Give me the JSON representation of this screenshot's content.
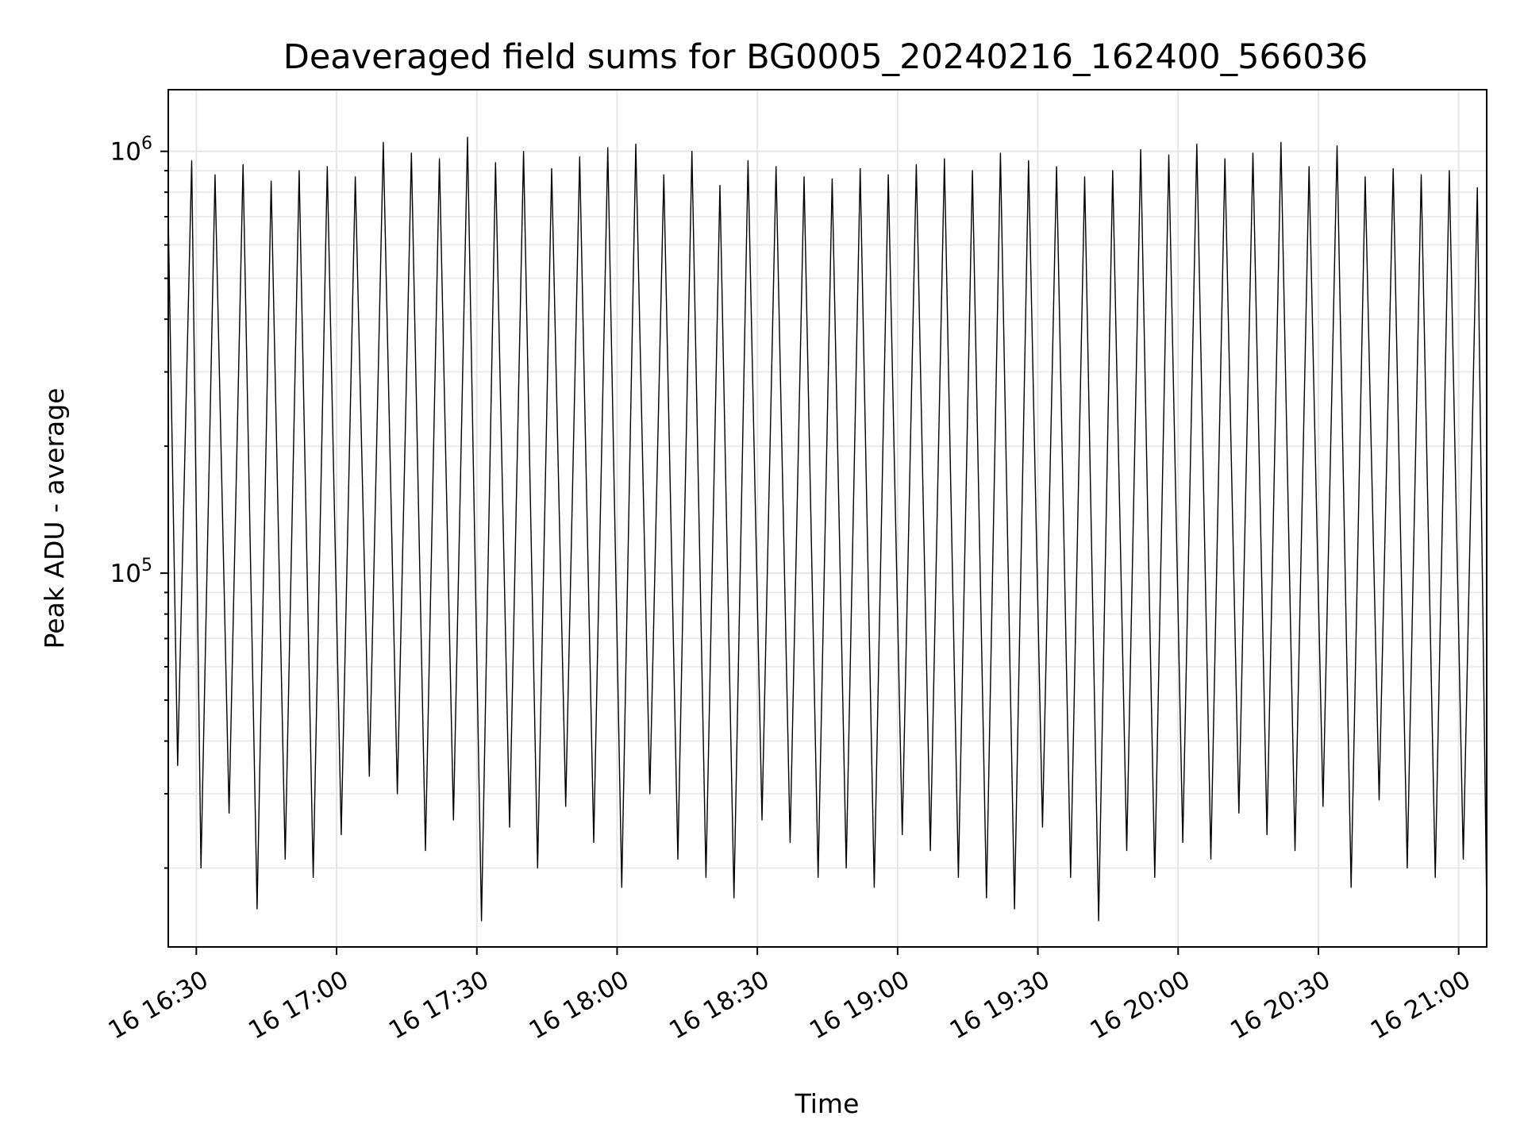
{
  "chart_data": {
    "type": "line",
    "title": "Deaveraged field sums for BG0005_20240216_162400_566036",
    "xlabel": "Time",
    "ylabel": "Peak ADU - average",
    "yscale": "log",
    "ylim": [
      13000,
      1400000
    ],
    "xlim": [
      "2024-02-16 16:24",
      "2024-02-16 21:06"
    ],
    "grid": true,
    "line_color": "#000000",
    "x_ticks": [
      {
        "value": "2024-02-16 16:30",
        "label": "16 16:30"
      },
      {
        "value": "2024-02-16 17:00",
        "label": "16 17:00"
      },
      {
        "value": "2024-02-16 17:30",
        "label": "16 17:30"
      },
      {
        "value": "2024-02-16 18:00",
        "label": "16 18:00"
      },
      {
        "value": "2024-02-16 18:30",
        "label": "16 18:30"
      },
      {
        "value": "2024-02-16 19:00",
        "label": "16 19:00"
      },
      {
        "value": "2024-02-16 19:30",
        "label": "16 19:30"
      },
      {
        "value": "2024-02-16 20:00",
        "label": "16 20:00"
      },
      {
        "value": "2024-02-16 20:30",
        "label": "16 20:30"
      },
      {
        "value": "2024-02-16 21:00",
        "label": "16 21:00"
      }
    ],
    "y_ticks": [
      {
        "value": 100000,
        "base": "10",
        "exp": "5"
      },
      {
        "value": 1000000,
        "base": "10",
        "exp": "6"
      }
    ],
    "series": [
      {
        "x": [
          "2024-02-16 16:24",
          "2024-02-16 16:26",
          "2024-02-16 16:29",
          "2024-02-16 16:31",
          "2024-02-16 16:34",
          "2024-02-16 16:37",
          "2024-02-16 16:40",
          "2024-02-16 16:43",
          "2024-02-16 16:46",
          "2024-02-16 16:49",
          "2024-02-16 16:52",
          "2024-02-16 16:55",
          "2024-02-16 16:58",
          "2024-02-16 17:01",
          "2024-02-16 17:04",
          "2024-02-16 17:07",
          "2024-02-16 17:10",
          "2024-02-16 17:13",
          "2024-02-16 17:16",
          "2024-02-16 17:19",
          "2024-02-16 17:22",
          "2024-02-16 17:25",
          "2024-02-16 17:28",
          "2024-02-16 17:31",
          "2024-02-16 17:34",
          "2024-02-16 17:37",
          "2024-02-16 17:40",
          "2024-02-16 17:43",
          "2024-02-16 17:46",
          "2024-02-16 17:49",
          "2024-02-16 17:52",
          "2024-02-16 17:55",
          "2024-02-16 17:58",
          "2024-02-16 18:01",
          "2024-02-16 18:04",
          "2024-02-16 18:07",
          "2024-02-16 18:10",
          "2024-02-16 18:13",
          "2024-02-16 18:16",
          "2024-02-16 18:19",
          "2024-02-16 18:22",
          "2024-02-16 18:25",
          "2024-02-16 18:28",
          "2024-02-16 18:31",
          "2024-02-16 18:34",
          "2024-02-16 18:37",
          "2024-02-16 18:40",
          "2024-02-16 18:43",
          "2024-02-16 18:46",
          "2024-02-16 18:49",
          "2024-02-16 18:52",
          "2024-02-16 18:55",
          "2024-02-16 18:58",
          "2024-02-16 19:01",
          "2024-02-16 19:04",
          "2024-02-16 19:07",
          "2024-02-16 19:10",
          "2024-02-16 19:13",
          "2024-02-16 19:16",
          "2024-02-16 19:19",
          "2024-02-16 19:22",
          "2024-02-16 19:25",
          "2024-02-16 19:28",
          "2024-02-16 19:31",
          "2024-02-16 19:34",
          "2024-02-16 19:37",
          "2024-02-16 19:40",
          "2024-02-16 19:43",
          "2024-02-16 19:46",
          "2024-02-16 19:49",
          "2024-02-16 19:52",
          "2024-02-16 19:55",
          "2024-02-16 19:58",
          "2024-02-16 20:01",
          "2024-02-16 20:04",
          "2024-02-16 20:07",
          "2024-02-16 20:10",
          "2024-02-16 20:13",
          "2024-02-16 20:16",
          "2024-02-16 20:19",
          "2024-02-16 20:22",
          "2024-02-16 20:25",
          "2024-02-16 20:28",
          "2024-02-16 20:31",
          "2024-02-16 20:34",
          "2024-02-16 20:37",
          "2024-02-16 20:40",
          "2024-02-16 20:43",
          "2024-02-16 20:46",
          "2024-02-16 20:49",
          "2024-02-16 20:52",
          "2024-02-16 20:55",
          "2024-02-16 20:58",
          "2024-02-16 21:01",
          "2024-02-16 21:04",
          "2024-02-16 21:06"
        ],
        "y": [
          700000,
          35000,
          950000,
          20000,
          880000,
          27000,
          930000,
          16000,
          850000,
          21000,
          900000,
          19000,
          920000,
          24000,
          870000,
          33000,
          1050000,
          30000,
          990000,
          22000,
          960000,
          26000,
          1080000,
          15000,
          940000,
          25000,
          1000000,
          20000,
          910000,
          28000,
          970000,
          23000,
          1020000,
          18000,
          1040000,
          30000,
          880000,
          21000,
          1000000,
          19000,
          830000,
          17000,
          950000,
          26000,
          920000,
          23000,
          870000,
          19000,
          860000,
          20000,
          910000,
          18000,
          880000,
          24000,
          930000,
          22000,
          960000,
          19000,
          900000,
          17000,
          990000,
          16000,
          950000,
          25000,
          920000,
          19000,
          870000,
          15000,
          900000,
          22000,
          1010000,
          19000,
          980000,
          23000,
          1040000,
          21000,
          960000,
          27000,
          990000,
          24000,
          1050000,
          22000,
          920000,
          28000,
          1030000,
          18000,
          870000,
          29000,
          910000,
          20000,
          880000,
          19000,
          900000,
          21000,
          820000,
          16000
        ]
      }
    ]
  }
}
